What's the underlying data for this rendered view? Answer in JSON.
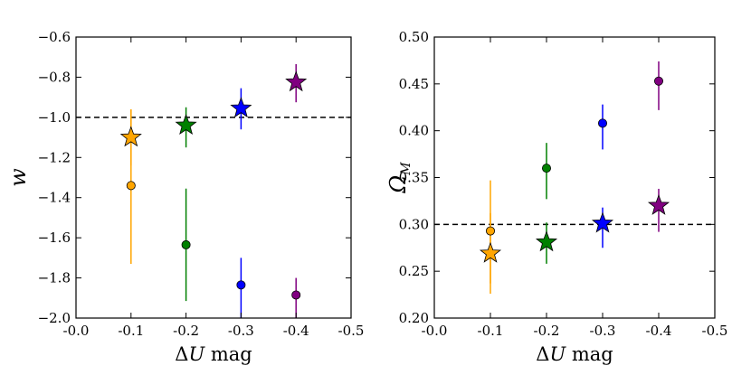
{
  "colors": {
    "orange": "#ffa500",
    "green": "#008000",
    "blue": "#0000ff",
    "purple": "#800080"
  },
  "chart_data": [
    {
      "type": "scatter",
      "title": "",
      "xlabel": "ΔU mag",
      "xlabel_parts": {
        "sym": "Δ",
        "var": "U",
        "rest": " mag"
      },
      "ylabel": "w",
      "ylabel_parts": {
        "main": "w",
        "sub": ""
      },
      "xlim": [
        0.0,
        -0.5
      ],
      "ylim": [
        -2.0,
        -0.6
      ],
      "xticks": [
        0.0,
        -0.1,
        -0.2,
        -0.3,
        -0.4,
        -0.5
      ],
      "xtick_labels": [
        "-0.0",
        "-0.1",
        "-0.2",
        "-0.3",
        "-0.4",
        "-0.5"
      ],
      "yticks": [
        -2.0,
        -1.8,
        -1.6,
        -1.4,
        -1.2,
        -1.0,
        -0.8,
        -0.6
      ],
      "ytick_labels": [
        "−2.0",
        "−1.8",
        "−1.6",
        "−1.4",
        "−1.2",
        "−1.0",
        "−0.8",
        "−0.6"
      ],
      "reference_line": -1.0,
      "grid": false,
      "series": [
        {
          "marker": "star",
          "x": [
            -0.1,
            -0.2,
            -0.3,
            -0.4
          ],
          "y": [
            -1.1,
            -1.04,
            -0.955,
            -0.825
          ],
          "yerr_low": [
            0.14,
            0.11,
            0.105,
            0.1
          ],
          "yerr_high": [
            0.14,
            0.09,
            0.1,
            0.09
          ],
          "colors": [
            "orange",
            "green",
            "blue",
            "purple"
          ]
        },
        {
          "marker": "circle",
          "x": [
            -0.1,
            -0.2,
            -0.3,
            -0.4
          ],
          "y": [
            -1.34,
            -1.635,
            -1.835,
            -1.885
          ],
          "yerr_low": [
            0.39,
            0.28,
            0.165,
            0.115
          ],
          "yerr_high": [
            0.38,
            0.28,
            0.135,
            0.085
          ],
          "colors": [
            "orange",
            "green",
            "blue",
            "purple"
          ]
        }
      ]
    },
    {
      "type": "scatter",
      "title": "",
      "xlabel": "ΔU mag",
      "xlabel_parts": {
        "sym": "Δ",
        "var": "U",
        "rest": " mag"
      },
      "ylabel": "ΩM",
      "ylabel_parts": {
        "main": "Ω",
        "sub": "M"
      },
      "xlim": [
        0.0,
        -0.5
      ],
      "ylim": [
        0.2,
        0.5
      ],
      "xticks": [
        0.0,
        -0.1,
        -0.2,
        -0.3,
        -0.4,
        -0.5
      ],
      "xtick_labels": [
        "-0.0",
        "-0.1",
        "-0.2",
        "-0.3",
        "-0.4",
        "-0.5"
      ],
      "yticks": [
        0.2,
        0.25,
        0.3,
        0.35,
        0.4,
        0.45,
        0.5
      ],
      "ytick_labels": [
        "0.20",
        "0.25",
        "0.30",
        "0.35",
        "0.40",
        "0.45",
        "0.50"
      ],
      "reference_line": 0.3,
      "grid": false,
      "series": [
        {
          "marker": "star",
          "x": [
            -0.1,
            -0.2,
            -0.3,
            -0.4
          ],
          "y": [
            0.269,
            0.281,
            0.301,
            0.32
          ],
          "yerr_low": [
            0.043,
            0.023,
            0.026,
            0.028
          ],
          "yerr_high": [
            0.043,
            0.021,
            0.017,
            0.018
          ],
          "colors": [
            "orange",
            "green",
            "blue",
            "purple"
          ]
        },
        {
          "marker": "circle",
          "x": [
            -0.1,
            -0.2,
            -0.3,
            -0.4
          ],
          "y": [
            0.293,
            0.36,
            0.408,
            0.453
          ],
          "yerr_low": [
            0.056,
            0.033,
            0.028,
            0.031
          ],
          "yerr_high": [
            0.054,
            0.027,
            0.02,
            0.021
          ],
          "colors": [
            "orange",
            "green",
            "blue",
            "purple"
          ]
        }
      ]
    }
  ]
}
